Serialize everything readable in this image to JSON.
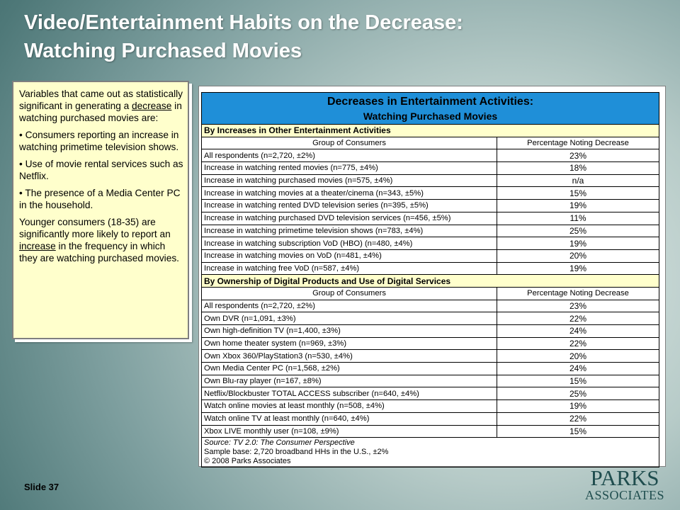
{
  "slide": {
    "title_line1": "Video/Entertainment Habits on the Decrease:",
    "title_line2": "Watching Purchased Movies",
    "slide_number": "Slide 37",
    "logo_line1": "PARKS",
    "logo_line2": "ASSOCIATES"
  },
  "note": {
    "intro_pre": "Variables that came out as statistically significant in generating a ",
    "intro_underlined": "decrease",
    "intro_post": " in watching purchased movies are:",
    "bullets": [
      "• Consumers reporting an increase in watching primetime television shows.",
      "• Use of movie rental services such as Netflix.",
      "• The presence of a Media Center PC in the household."
    ],
    "closing_pre": "Younger consumers (18-35) are significantly more likely to report an ",
    "closing_underlined": "increase",
    "closing_post": " in the frequency in which they are watching purchased movies."
  },
  "table": {
    "title_line1": "Decreases in Entertainment Activities:",
    "title_line2": "Watching Purchased Movies",
    "col_group": "Group of Consumers",
    "col_pct": "Percentage Noting Decrease",
    "sections": [
      {
        "heading": "By Increases in Other Entertainment Activities",
        "rows": [
          [
            "All respondents (n=2,720, ±2%)",
            "23%"
          ],
          [
            "Increase in watching rented movies (n=775, ±4%)",
            "18%"
          ],
          [
            "Increase in watching purchased movies (n=575, ±4%)",
            "n/a"
          ],
          [
            "Increase in watching movies at a theater/cinema (n=343, ±5%)",
            "15%"
          ],
          [
            "Increase in watching rented DVD television series (n=395, ±5%)",
            "19%"
          ],
          [
            "Increase in watching purchased DVD television services (n=456, ±5%)",
            "11%"
          ],
          [
            "Increase in watching primetime television shows (n=783, ±4%)",
            "25%"
          ],
          [
            "Increase in watching subscription VoD (HBO) (n=480, ±4%)",
            "19%"
          ],
          [
            "Increase in watching movies on VoD (n=481, ±4%)",
            "20%"
          ],
          [
            "Increase in watching free VoD (n=587, ±4%)",
            "19%"
          ]
        ]
      },
      {
        "heading": "By Ownership of Digital Products and Use of Digital Services",
        "rows": [
          [
            "All respondents (n=2,720, ±2%)",
            "23%"
          ],
          [
            "Own DVR (n=1,091, ±3%)",
            "22%"
          ],
          [
            "Own high-definition TV (n=1,400, ±3%)",
            "24%"
          ],
          [
            "Own home theater system (n=969, ±3%)",
            "22%"
          ],
          [
            "Own Xbox 360/PlayStation3 (n=530, ±4%)",
            "20%"
          ],
          [
            "Own Media Center PC (n=1,568, ±2%)",
            "24%"
          ],
          [
            "Own Blu-ray player (n=167, ±8%)",
            "15%"
          ],
          [
            "Netflix/Blockbuster TOTAL ACCESS subscriber (n=640, ±4%)",
            "25%"
          ],
          [
            "Watch online movies at least monthly (n=508, ±4%)",
            "19%"
          ],
          [
            "Watch online TV at least monthly (n=640, ±4%)",
            "22%"
          ],
          [
            "Xbox LIVE monthly user (n=108, ±9%)",
            "15%"
          ]
        ]
      }
    ],
    "source": "Source: TV 2.0: The Consumer Perspective",
    "sample": "Sample base: 2,720 broadband HHs in the U.S., ±2%",
    "copyright": "© 2008 Parks Associates"
  },
  "colors": {
    "table_header_bg": "#1f8fd8",
    "section_bg": "#ffffcc",
    "note_bg": "#ffffcc",
    "title_text": "#ffffff",
    "logo_text": "#1f4d4e"
  }
}
